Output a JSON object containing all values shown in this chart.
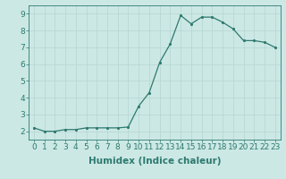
{
  "x": [
    0,
    1,
    2,
    3,
    4,
    5,
    6,
    7,
    8,
    9,
    10,
    11,
    12,
    13,
    14,
    15,
    16,
    17,
    18,
    19,
    20,
    21,
    22,
    23
  ],
  "y": [
    2.2,
    2.0,
    2.0,
    2.1,
    2.1,
    2.2,
    2.2,
    2.2,
    2.2,
    2.25,
    3.5,
    4.3,
    6.1,
    7.2,
    8.9,
    8.4,
    8.8,
    8.8,
    8.5,
    8.1,
    7.4,
    7.4,
    7.3,
    7.0
  ],
  "xlabel": "Humidex (Indice chaleur)",
  "ylim": [
    1.5,
    9.5
  ],
  "xlim": [
    -0.5,
    23.5
  ],
  "bg_color": "#cce8e5",
  "line_color": "#2d7a6e",
  "grid_color": "#b8d8d5",
  "tick_labels": [
    "0",
    "1",
    "2",
    "3",
    "4",
    "5",
    "6",
    "7",
    "8",
    "9",
    "10",
    "11",
    "12",
    "13",
    "14",
    "15",
    "16",
    "17",
    "18",
    "19",
    "20",
    "21",
    "22",
    "23"
  ],
  "yticks": [
    2,
    3,
    4,
    5,
    6,
    7,
    8,
    9
  ],
  "xlabel_fontsize": 7.5,
  "tick_fontsize": 6.5,
  "linewidth": 0.9,
  "markersize": 2.5
}
